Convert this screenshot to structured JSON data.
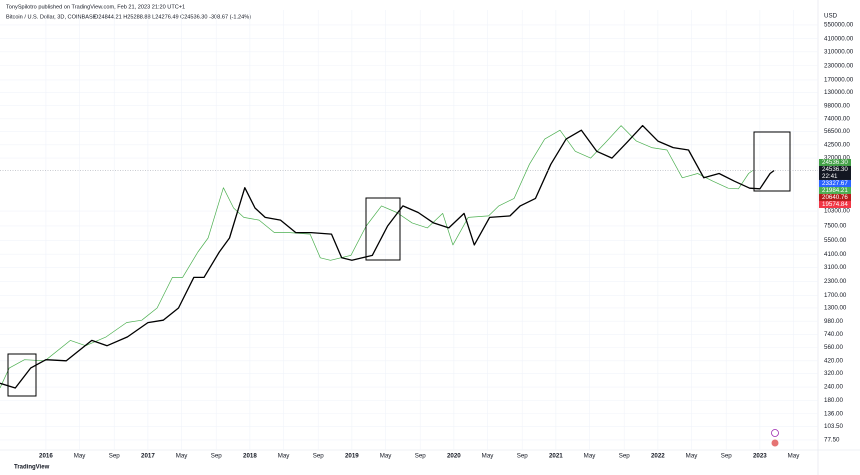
{
  "header": {
    "publisher": "TonySpilotro published on TradingView.com, Feb 21, 2023 21:20 UTC+1",
    "symbol": "Bitcoin / U.S. Dollar, 3D, COINBASE",
    "ohlc": "O24844.21 H25288.88 L24276.49 C24536.30 -308.67 (-1.24%)"
  },
  "footer": {
    "logo": "TradingView"
  },
  "chart_data": {
    "type": "line",
    "log_scale": true,
    "grid": true,
    "y_unit": "USD",
    "xlim": [
      2015.55,
      2023.57
    ],
    "ylim": [
      62.5,
      757000
    ],
    "xticks": [
      {
        "value": 2016,
        "label": "2016"
      },
      {
        "value": 2016.33,
        "label": "May"
      },
      {
        "value": 2016.67,
        "label": "Sep"
      },
      {
        "value": 2017,
        "label": "2017"
      },
      {
        "value": 2017.33,
        "label": "May"
      },
      {
        "value": 2017.67,
        "label": "Sep"
      },
      {
        "value": 2018,
        "label": "2018"
      },
      {
        "value": 2018.33,
        "label": "May"
      },
      {
        "value": 2018.67,
        "label": "Sep"
      },
      {
        "value": 2019,
        "label": "2019"
      },
      {
        "value": 2019.33,
        "label": "May"
      },
      {
        "value": 2019.67,
        "label": "Sep"
      },
      {
        "value": 2020,
        "label": "2020"
      },
      {
        "value": 2020.33,
        "label": "May"
      },
      {
        "value": 2020.67,
        "label": "Sep"
      },
      {
        "value": 2021,
        "label": "2021"
      },
      {
        "value": 2021.33,
        "label": "May"
      },
      {
        "value": 2021.67,
        "label": "Sep"
      },
      {
        "value": 2022,
        "label": "2022"
      },
      {
        "value": 2022.33,
        "label": "May"
      },
      {
        "value": 2022.67,
        "label": "Sep"
      },
      {
        "value": 2023,
        "label": "2023"
      },
      {
        "value": 2023.33,
        "label": "May"
      }
    ],
    "yticks": [
      {
        "value": 550000,
        "label": "550000.00"
      },
      {
        "value": 410000,
        "label": "410000.00"
      },
      {
        "value": 310000,
        "label": "310000.00"
      },
      {
        "value": 230000,
        "label": "230000.00"
      },
      {
        "value": 170000,
        "label": "170000.00"
      },
      {
        "value": 130000,
        "label": "130000.00"
      },
      {
        "value": 98000,
        "label": "98000.00"
      },
      {
        "value": 74000,
        "label": "74000.00"
      },
      {
        "value": 56500,
        "label": "56500.00"
      },
      {
        "value": 42500,
        "label": "42500.00"
      },
      {
        "value": 32000,
        "label": "32000.00"
      },
      {
        "value": 10300,
        "label": "10300.00"
      },
      {
        "value": 7500,
        "label": "7500.00"
      },
      {
        "value": 5500,
        "label": "5500.00"
      },
      {
        "value": 4100,
        "label": "4100.00"
      },
      {
        "value": 3100,
        "label": "3100.00"
      },
      {
        "value": 2300,
        "label": "2300.00"
      },
      {
        "value": 1700,
        "label": "1700.00"
      },
      {
        "value": 1300,
        "label": "1300.00"
      },
      {
        "value": 980,
        "label": "980.00"
      },
      {
        "value": 740,
        "label": "740.00"
      },
      {
        "value": 560,
        "label": "560.00"
      },
      {
        "value": 420,
        "label": "420.00"
      },
      {
        "value": 320,
        "label": "320.00"
      },
      {
        "value": 240,
        "label": "240.00"
      },
      {
        "value": 180,
        "label": "180.00"
      },
      {
        "value": 136,
        "label": "136.00"
      },
      {
        "value": 103.5,
        "label": "103.50"
      },
      {
        "value": 77.5,
        "label": "77.50"
      }
    ],
    "price_tags": [
      {
        "value": 24536.3,
        "label": "24536.30",
        "color": "#43a047"
      },
      {
        "value": 24536.3,
        "label": "24536.30",
        "color": "#131722",
        "countdown": "22:41"
      },
      {
        "value": 23327.67,
        "label": "23327.67",
        "color": "#2962ff"
      },
      {
        "value": 21984.21,
        "label": "21984.21",
        "color": "#4caf50"
      },
      {
        "value": 20640.76,
        "label": "20640.76",
        "color": "#b71c1c"
      },
      {
        "value": 19574.84,
        "label": "19574.84",
        "color": "#f23645"
      }
    ],
    "series": [
      {
        "color": "#000000",
        "width": 1.3,
        "x": [
          2015.55,
          2015.7,
          2015.85,
          2016.0,
          2016.2,
          2016.45,
          2016.6,
          2016.8,
          2017.0,
          2017.15,
          2017.3,
          2017.45,
          2017.55,
          2017.7,
          2017.8,
          2017.95,
          2018.05,
          2018.15,
          2018.3,
          2018.45,
          2018.6,
          2018.8,
          2018.9,
          2019.0,
          2019.2,
          2019.35,
          2019.5,
          2019.65,
          2019.8,
          2019.95,
          2020.1,
          2020.2,
          2020.35,
          2020.55,
          2020.65,
          2020.8,
          2020.95,
          2021.1,
          2021.25,
          2021.4,
          2021.55,
          2021.7,
          2021.85,
          2022.0,
          2022.15,
          2022.3,
          2022.45,
          2022.6,
          2022.75,
          2022.9,
          2023.0,
          2023.1,
          2023.14
        ],
        "values": [
          260,
          235,
          360,
          430,
          420,
          650,
          580,
          700,
          950,
          1000,
          1300,
          2500,
          2500,
          4300,
          5800,
          17000,
          11000,
          9000,
          8500,
          6500,
          6500,
          6300,
          3800,
          3600,
          4000,
          7500,
          11500,
          10000,
          8000,
          7200,
          9800,
          5000,
          9000,
          9300,
          11500,
          13500,
          28000,
          48000,
          58000,
          37000,
          32000,
          45000,
          64000,
          46000,
          40000,
          38000,
          21000,
          23000,
          19500,
          16800,
          16600,
          23000,
          24536.3
        ]
      },
      {
        "color": "#4caf50",
        "width": 0.7,
        "x": [
          2015.55,
          2015.64,
          2015.79,
          2015.99,
          2016.24,
          2016.39,
          2016.59,
          2016.79,
          2016.94,
          2017.09,
          2017.24,
          2017.34,
          2017.49,
          2017.59,
          2017.74,
          2017.84,
          2017.94,
          2018.09,
          2018.24,
          2018.39,
          2018.59,
          2018.69,
          2018.79,
          2018.99,
          2019.14,
          2019.29,
          2019.44,
          2019.59,
          2019.74,
          2019.89,
          2019.99,
          2020.14,
          2020.34,
          2020.44,
          2020.59,
          2020.74,
          2020.89,
          2021.04,
          2021.19,
          2021.34,
          2021.49,
          2021.64,
          2021.79,
          2021.94,
          2022.09,
          2022.24,
          2022.39,
          2022.54,
          2022.69,
          2022.79,
          2022.89,
          2022.93
        ],
        "values": [
          235,
          360,
          430,
          420,
          650,
          580,
          700,
          950,
          1000,
          1300,
          2500,
          2500,
          4300,
          5800,
          17000,
          11000,
          9000,
          8500,
          6500,
          6500,
          6300,
          3800,
          3600,
          4000,
          7500,
          11500,
          10000,
          8000,
          7200,
          9800,
          5000,
          9000,
          9300,
          11500,
          13500,
          28000,
          48000,
          58000,
          37000,
          32000,
          45000,
          64000,
          46000,
          40000,
          38000,
          21000,
          23000,
          19500,
          16800,
          16600,
          23000,
          24536.3
        ]
      }
    ]
  }
}
